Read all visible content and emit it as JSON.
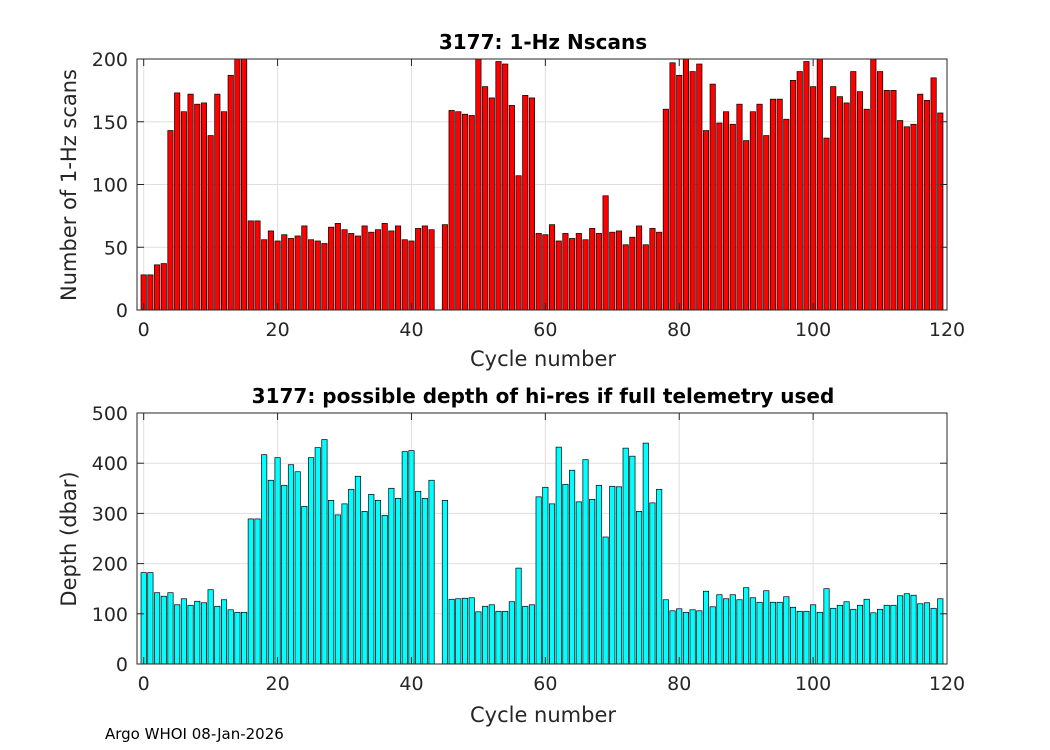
{
  "footer": "Argo WHOI 08-Jan-2026",
  "chart_data": [
    {
      "type": "bar",
      "title": "3177: 1-Hz Nscans",
      "xlabel": "Cycle number",
      "ylabel": "Number of 1-Hz scans",
      "xlim": [
        -1,
        120
      ],
      "ylim": [
        0,
        200
      ],
      "xticks": [
        0,
        20,
        40,
        60,
        80,
        100,
        120
      ],
      "yticks": [
        0,
        50,
        100,
        150,
        200
      ],
      "grid": true,
      "color": "#ff0000",
      "x": [
        0,
        1,
        2,
        3,
        4,
        5,
        6,
        7,
        8,
        9,
        10,
        11,
        12,
        13,
        14,
        15,
        16,
        17,
        18,
        19,
        20,
        21,
        22,
        23,
        24,
        25,
        26,
        27,
        28,
        29,
        30,
        31,
        32,
        33,
        34,
        35,
        36,
        37,
        38,
        39,
        40,
        41,
        42,
        43,
        45,
        46,
        47,
        48,
        49,
        50,
        51,
        52,
        53,
        54,
        55,
        56,
        57,
        58,
        59,
        60,
        61,
        62,
        63,
        64,
        65,
        66,
        67,
        68,
        69,
        70,
        71,
        72,
        73,
        74,
        75,
        76,
        77,
        78,
        79,
        80,
        81,
        82,
        83,
        84,
        85,
        86,
        87,
        88,
        89,
        90,
        91,
        92,
        93,
        94,
        95,
        96,
        97,
        98,
        99,
        100,
        101,
        102,
        103,
        104,
        105,
        106,
        107,
        108,
        109,
        110,
        111,
        112,
        113,
        114,
        115,
        116,
        117,
        118,
        119
      ],
      "values": [
        28,
        28,
        36,
        37,
        143,
        173,
        158,
        172,
        164,
        165,
        139,
        172,
        158,
        187,
        200,
        200,
        71,
        71,
        56,
        63,
        55,
        60,
        57,
        59,
        67,
        56,
        55,
        53,
        66,
        69,
        64,
        61,
        59,
        67,
        62,
        64,
        69,
        63,
        67,
        56,
        55,
        65,
        67,
        64,
        68,
        159,
        158,
        156,
        155,
        200,
        178,
        169,
        198,
        196,
        163,
        107,
        171,
        169,
        61,
        60,
        68,
        55,
        61,
        57,
        61,
        56,
        65,
        61,
        91,
        62,
        63,
        52,
        58,
        67,
        52,
        65,
        62,
        160,
        197,
        187,
        200,
        190,
        196,
        143,
        180,
        149,
        158,
        148,
        164,
        135,
        158,
        164,
        139,
        168,
        168,
        152,
        183,
        190,
        198,
        178,
        200,
        137,
        178,
        170,
        165,
        190,
        174,
        160,
        200,
        190,
        175,
        175,
        151,
        146,
        148,
        172,
        167,
        185,
        157
      ]
    },
    {
      "type": "bar",
      "title": "3177: possible depth of hi-res if full telemetry used",
      "xlabel": "Cycle number",
      "ylabel": "Depth (dbar)",
      "xlim": [
        -1,
        120
      ],
      "ylim": [
        0,
        500
      ],
      "xticks": [
        0,
        20,
        40,
        60,
        80,
        100,
        120
      ],
      "yticks": [
        0,
        100,
        200,
        300,
        400,
        500
      ],
      "grid": true,
      "color": "#00ffff",
      "x": [
        0,
        1,
        2,
        3,
        4,
        5,
        6,
        7,
        8,
        9,
        10,
        11,
        12,
        13,
        14,
        15,
        16,
        17,
        18,
        19,
        20,
        21,
        22,
        23,
        24,
        25,
        26,
        27,
        28,
        29,
        30,
        31,
        32,
        33,
        34,
        35,
        36,
        37,
        38,
        39,
        40,
        41,
        42,
        43,
        45,
        46,
        47,
        48,
        49,
        50,
        51,
        52,
        53,
        54,
        55,
        56,
        57,
        58,
        59,
        60,
        61,
        62,
        63,
        64,
        65,
        66,
        67,
        68,
        69,
        70,
        71,
        72,
        73,
        74,
        75,
        76,
        77,
        78,
        79,
        80,
        81,
        82,
        83,
        84,
        85,
        86,
        87,
        88,
        89,
        90,
        91,
        92,
        93,
        94,
        95,
        96,
        97,
        98,
        99,
        100,
        101,
        102,
        103,
        104,
        105,
        106,
        107,
        108,
        109,
        110,
        111,
        112,
        113,
        114,
        115,
        116,
        117,
        118,
        119
      ],
      "values": [
        182,
        182,
        142,
        135,
        142,
        118,
        130,
        117,
        125,
        122,
        148,
        115,
        128,
        108,
        103,
        103,
        289,
        289,
        417,
        366,
        411,
        356,
        397,
        383,
        314,
        411,
        431,
        447,
        326,
        297,
        319,
        348,
        374,
        304,
        338,
        326,
        296,
        350,
        330,
        423,
        425,
        344,
        330,
        366,
        326,
        129,
        130,
        131,
        132,
        104,
        115,
        118,
        105,
        105,
        124,
        191,
        115,
        118,
        333,
        352,
        319,
        432,
        358,
        386,
        323,
        407,
        328,
        356,
        253,
        354,
        353,
        430,
        414,
        304,
        440,
        321,
        348,
        128,
        106,
        110,
        103,
        108,
        106,
        145,
        114,
        138,
        130,
        138,
        128,
        152,
        132,
        123,
        146,
        123,
        123,
        134,
        113,
        105,
        105,
        118,
        103,
        150,
        111,
        117,
        124,
        109,
        117,
        129,
        102,
        109,
        117,
        117,
        136,
        140,
        137,
        120,
        122,
        111,
        130
      ]
    }
  ]
}
